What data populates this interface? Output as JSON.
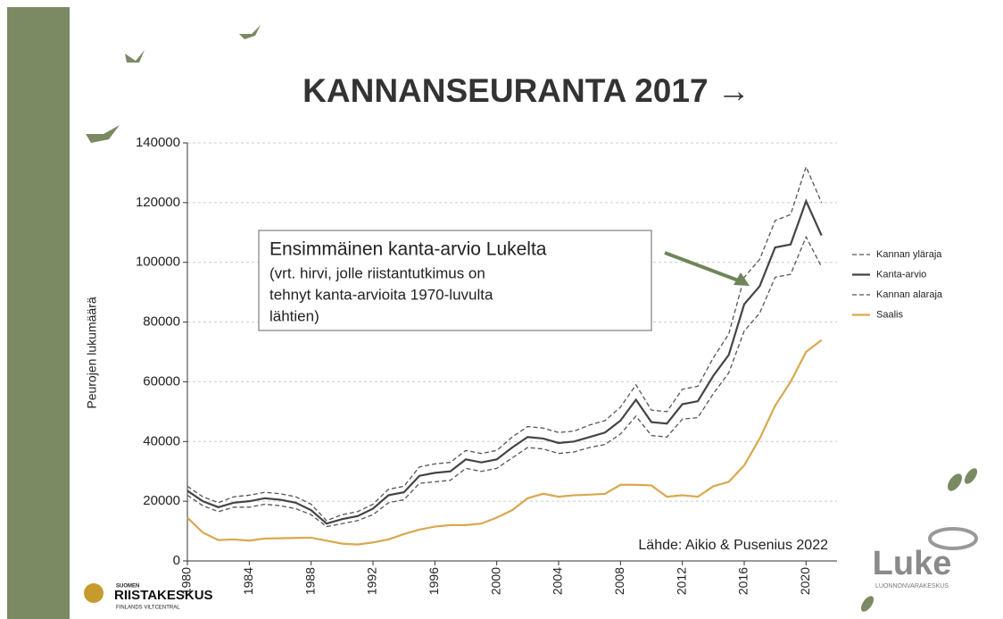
{
  "chart_data": {
    "type": "line",
    "title": "KANNANSEURANTA 2017 →",
    "y_label": "Peurojen lukumäärä",
    "x": [
      1980,
      1981,
      1982,
      1983,
      1984,
      1985,
      1986,
      1987,
      1988,
      1989,
      1990,
      1991,
      1992,
      1993,
      1994,
      1995,
      1996,
      1997,
      1998,
      1999,
      2000,
      2001,
      2002,
      2003,
      2004,
      2005,
      2006,
      2007,
      2008,
      2009,
      2010,
      2011,
      2012,
      2013,
      2014,
      2015,
      2016,
      2017,
      2018,
      2019,
      2020,
      2021
    ],
    "series": [
      {
        "name": "Kannan yläraja",
        "color": "#555555",
        "dashed": true,
        "values": [
          25000,
          21500,
          19500,
          21500,
          22000,
          23000,
          22500,
          21500,
          19000,
          13500,
          15500,
          16500,
          19000,
          24000,
          25000,
          31500,
          32500,
          33000,
          37000,
          36000,
          37000,
          41500,
          45000,
          44500,
          43000,
          43500,
          45500,
          47000,
          51500,
          59000,
          50500,
          50000,
          57500,
          58500,
          68000,
          76000,
          95000,
          101000,
          114000,
          116000,
          132000,
          120000
        ]
      },
      {
        "name": "Kanta-arvio",
        "color": "#444444",
        "dashed": false,
        "values": [
          23500,
          20000,
          18000,
          19500,
          20000,
          21000,
          20500,
          19500,
          17000,
          12500,
          14000,
          15000,
          17500,
          22000,
          23000,
          28500,
          29500,
          30000,
          34000,
          33000,
          34000,
          38000,
          41500,
          41000,
          39500,
          40000,
          41500,
          43000,
          47000,
          54000,
          46500,
          46000,
          52500,
          53500,
          62000,
          69000,
          86000,
          92000,
          105000,
          106000,
          120500,
          109000
        ]
      },
      {
        "name": "Kannan alaraja",
        "color": "#555555",
        "dashed": true,
        "values": [
          22000,
          18500,
          16500,
          18000,
          18000,
          19000,
          18500,
          17500,
          15500,
          11500,
          12500,
          13500,
          15500,
          19500,
          20500,
          26000,
          26500,
          27000,
          31000,
          30000,
          31000,
          34500,
          38000,
          37500,
          36000,
          36500,
          38000,
          39000,
          42500,
          48500,
          42000,
          41500,
          47500,
          48000,
          56000,
          63000,
          77000,
          83000,
          95000,
          96000,
          108500,
          98500
        ]
      },
      {
        "name": "Saalis",
        "color": "#d9a84e",
        "dashed": false,
        "values": [
          14500,
          9500,
          7000,
          7200,
          6800,
          7500,
          7600,
          7700,
          7800,
          6800,
          5800,
          5500,
          6200,
          7200,
          9000,
          10500,
          11500,
          12000,
          12000,
          12500,
          14500,
          17000,
          21000,
          22500,
          21500,
          22000,
          22200,
          22500,
          25500,
          25500,
          25300,
          21500,
          22000,
          21500,
          25000,
          26500,
          32000,
          41000,
          52000,
          60000,
          70000,
          74000
        ]
      }
    ],
    "xlim": [
      1980,
      2022
    ],
    "xticks": [
      1980,
      1984,
      1988,
      1992,
      1996,
      2000,
      2004,
      2008,
      2012,
      2016,
      2020
    ],
    "ylim": [
      0,
      140000
    ],
    "yticks": [
      0,
      20000,
      40000,
      60000,
      80000,
      100000,
      120000,
      140000
    ],
    "grid": true,
    "annotation": [
      "Ensimmäinen kanta-arvio Lukelta",
      "(vrt. hirvi, jolle riistantutkimus on",
      "tehnyt kanta-arvioita 1970-luvulta",
      "lähtien)"
    ],
    "source": "Lähde: Aikio & Pusenius 2022"
  },
  "logos": {
    "left": {
      "top": "SUOMEN",
      "main": "RIISTAKESKUS",
      "sub": "FINLANDS VILTCENTRAL"
    },
    "right": {
      "main": "Luke",
      "sub": "LUONNONVARAKESKUS"
    }
  }
}
